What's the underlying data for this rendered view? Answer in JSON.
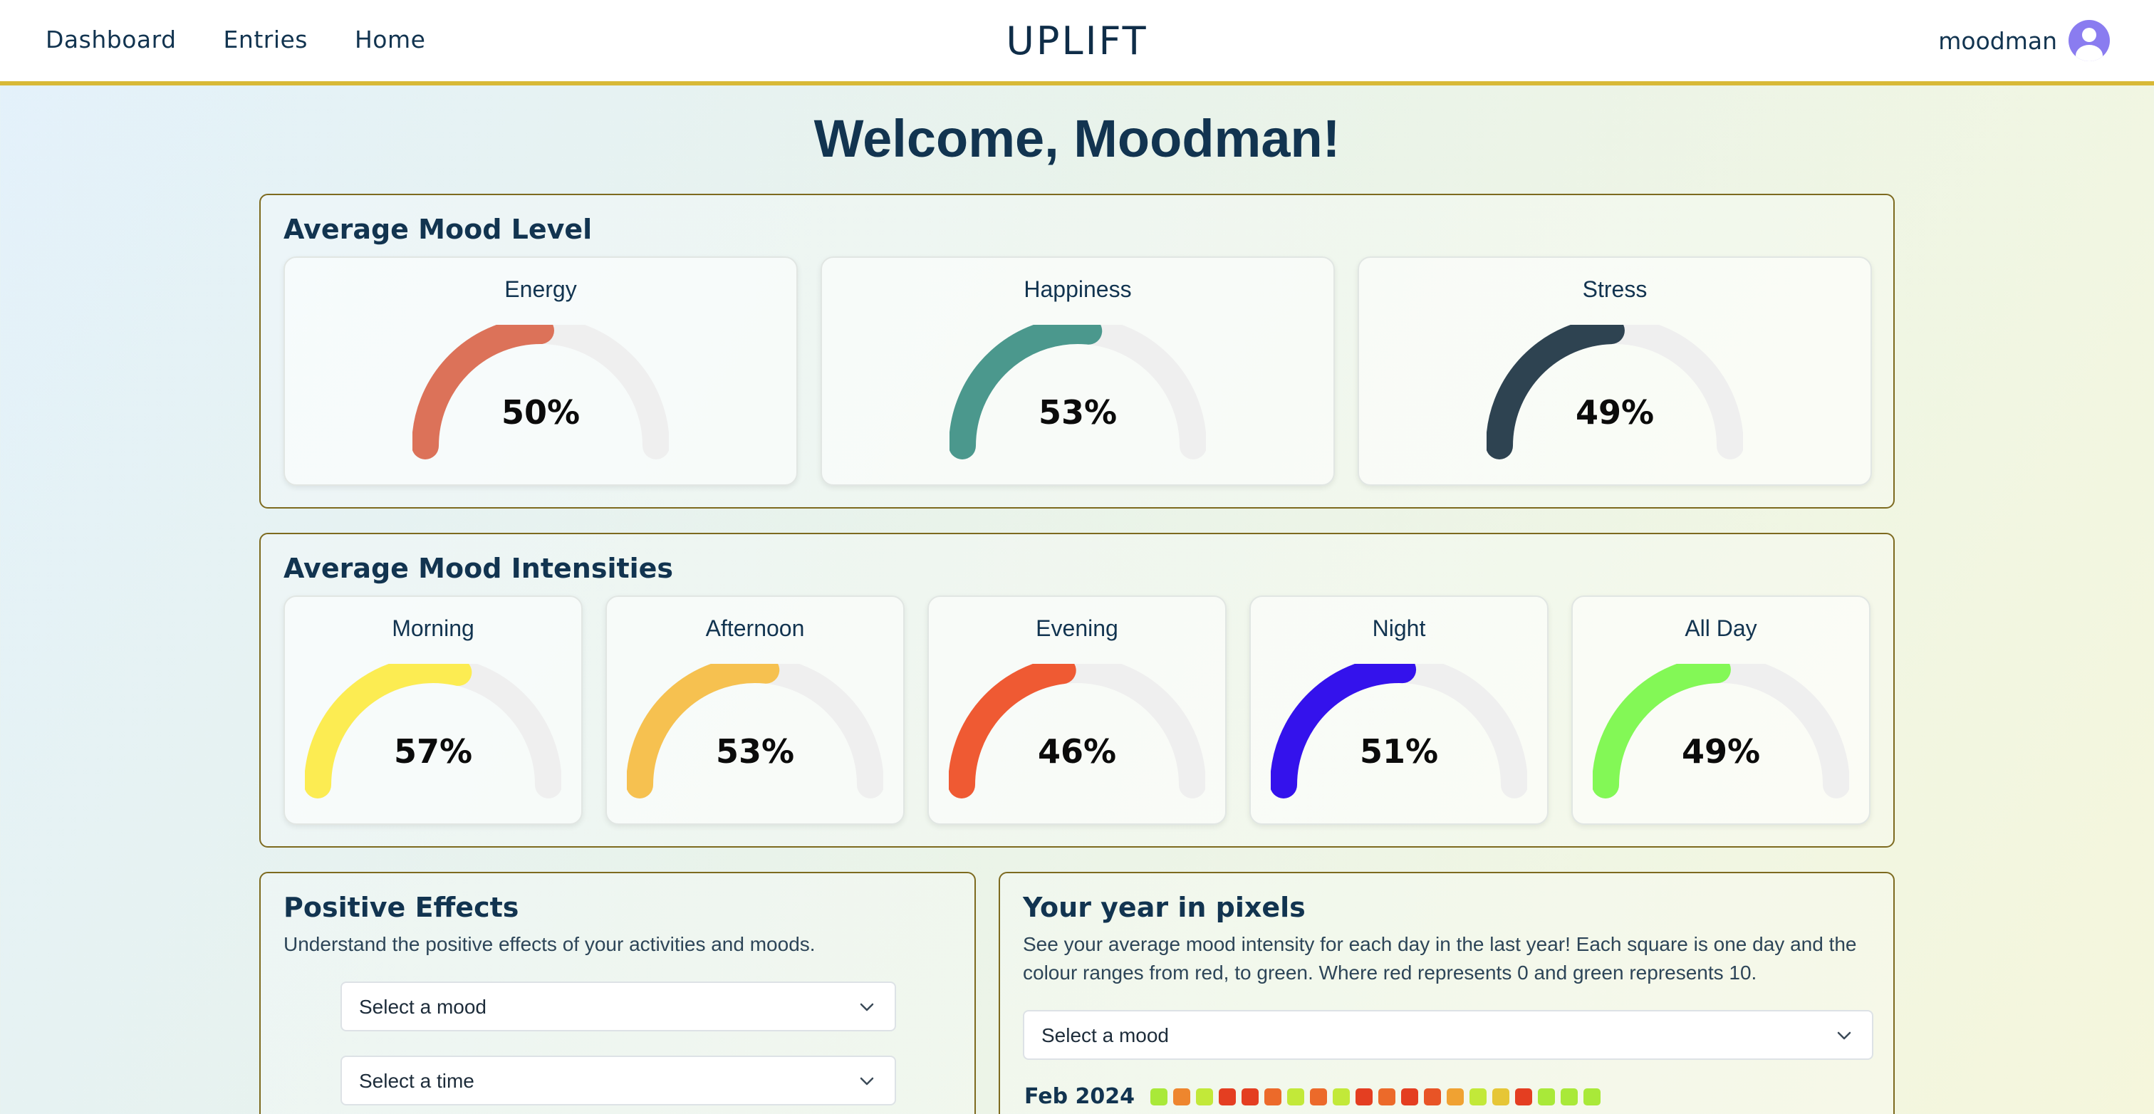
{
  "nav": {
    "items": [
      "Dashboard",
      "Entries",
      "Home"
    ],
    "brand": "UPLIFT",
    "username": "moodman"
  },
  "welcome": "Welcome, Moodman!",
  "mood_level": {
    "title": "Average Mood Level",
    "gauges": [
      {
        "label": "Energy",
        "value": 50,
        "display": "50%",
        "color": "#dc7259"
      },
      {
        "label": "Happiness",
        "value": 53,
        "display": "53%",
        "color": "#4b988d"
      },
      {
        "label": "Stress",
        "value": 49,
        "display": "49%",
        "color": "#2e4351"
      }
    ]
  },
  "intensities": {
    "title": "Average Mood Intensities",
    "gauges": [
      {
        "label": "Morning",
        "value": 57,
        "display": "57%",
        "color": "#fcec52"
      },
      {
        "label": "Afternoon",
        "value": 53,
        "display": "53%",
        "color": "#f6c150"
      },
      {
        "label": "Evening",
        "value": 46,
        "display": "46%",
        "color": "#ef5a33"
      },
      {
        "label": "Night",
        "value": 51,
        "display": "51%",
        "color": "#3412ec"
      },
      {
        "label": "All Day",
        "value": 49,
        "display": "49%",
        "color": "#83f856"
      }
    ]
  },
  "positive": {
    "title": "Positive Effects",
    "subtitle": "Understand the positive effects of your activities and moods.",
    "mood_select": "Select a mood",
    "time_select": "Select a time"
  },
  "pixels": {
    "title": "Your year in pixels",
    "description_line1": "See your average mood intensity for each day in the last year! Each square is one day and the",
    "description_line2": "colour ranges from red, to green. Where red represents 0 and green represents 10.",
    "mood_select": "Select a mood",
    "month": "Feb 2024",
    "days": [
      9,
      4,
      8,
      1,
      1,
      3,
      8,
      3,
      8,
      1,
      3,
      1,
      2,
      5,
      8,
      6,
      1,
      9,
      9,
      9
    ],
    "gauge_track": "#efefef"
  }
}
